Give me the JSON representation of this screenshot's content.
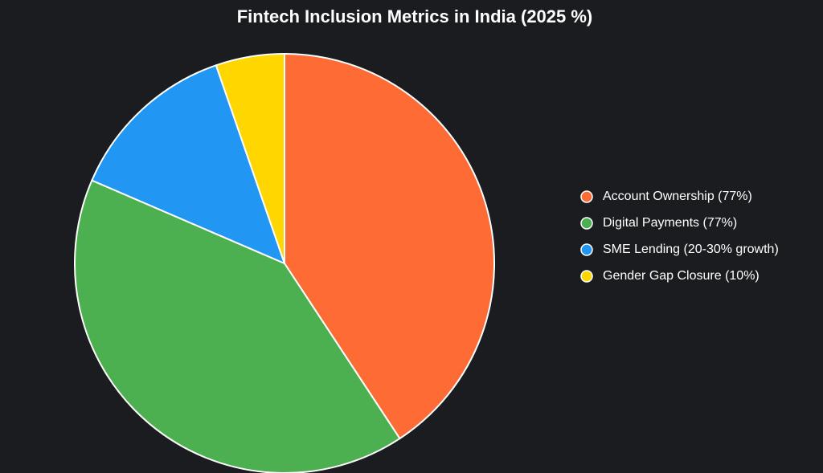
{
  "chart_data": {
    "type": "pie",
    "title": "Fintech Inclusion Metrics in India (2025 %)",
    "categories": [
      "Account Ownership (77%)",
      "Digital Payments (77%)",
      "SME Lending (20-30% growth)",
      "Gender Gap Closure (10%)"
    ],
    "values": [
      77,
      77,
      25,
      10
    ],
    "colors": [
      "#ff6b35",
      "#4caf50",
      "#2196f3",
      "#ffd600"
    ],
    "legend": "right"
  }
}
